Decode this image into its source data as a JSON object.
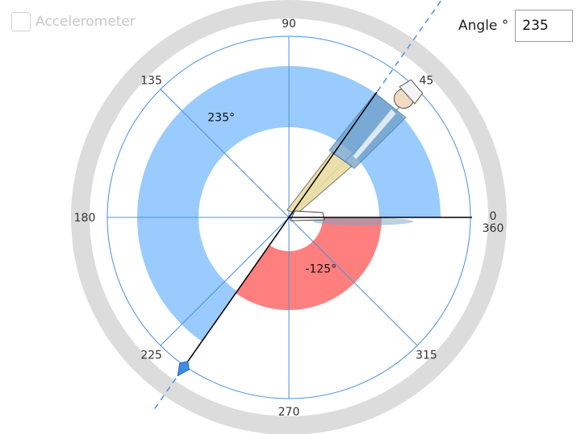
{
  "accelerometer": {
    "label": "Accelerometer",
    "checked": false
  },
  "angle_control": {
    "label": "Angle °",
    "value": "235"
  },
  "dial": {
    "tick_labels": [
      {
        "text": "90",
        "angle": 90
      },
      {
        "text": "45",
        "angle": 45
      },
      {
        "text": "135",
        "angle": 135
      },
      {
        "text": "180",
        "angle": 180
      },
      {
        "text": "225",
        "angle": 225
      },
      {
        "text": "270",
        "angle": 270
      },
      {
        "text": "315",
        "angle": 315
      },
      {
        "text": "0",
        "angle": 0
      },
      {
        "text": "360",
        "angle": 360
      }
    ],
    "angle_deg": 235,
    "positive_arc_label": "235°",
    "negative_arc_label": "-125°",
    "colors": {
      "outer_ring": "#dcdcdc",
      "guide": "#4a90e2",
      "positive_arc": "#99cbff",
      "negative_arc": "#ff7f7f",
      "pointer": "#000000",
      "arrow": "#3f8ee8"
    }
  }
}
